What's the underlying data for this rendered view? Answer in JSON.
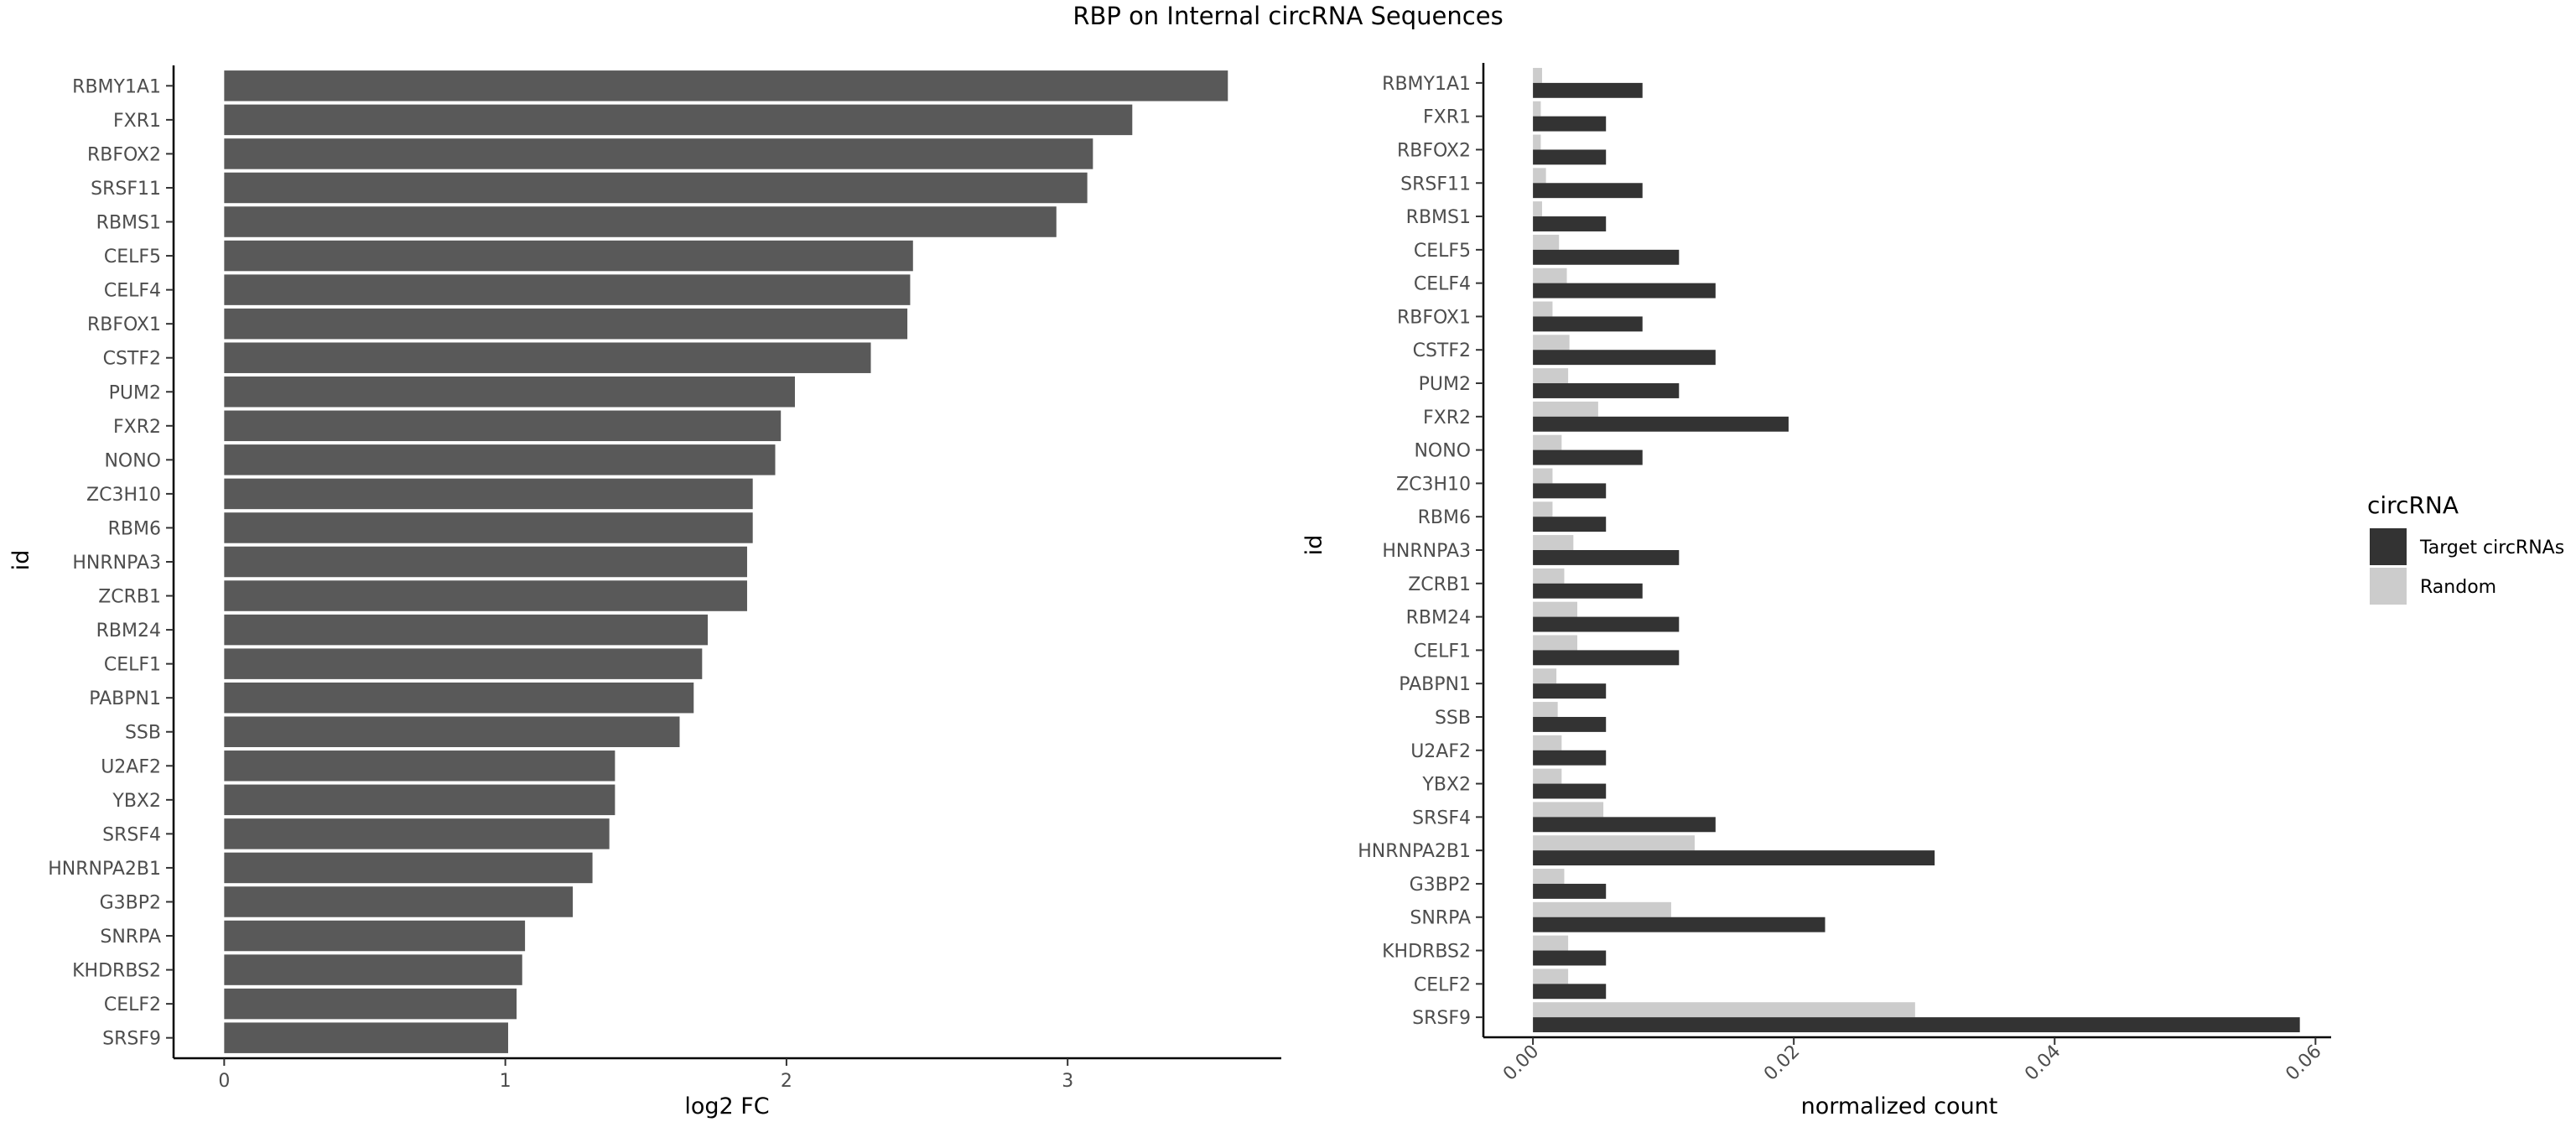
{
  "title": "RBP on Internal circRNA Sequences",
  "colors": {
    "left_bar": "#595959",
    "target": "#333333",
    "random": "#cccccc"
  },
  "chart_data": [
    {
      "type": "bar",
      "orientation": "horizontal",
      "xlabel": "log2 FC",
      "ylabel": "id",
      "xlim": [
        -0.18,
        3.76
      ],
      "xticks": [
        0,
        1,
        2,
        3
      ],
      "grid": false,
      "categories": [
        "RBMY1A1",
        "FXR1",
        "RBFOX2",
        "SRSF11",
        "RBMS1",
        "CELF5",
        "CELF4",
        "RBFOX1",
        "CSTF2",
        "PUM2",
        "FXR2",
        "NONO",
        "ZC3H10",
        "RBM6",
        "HNRNPA3",
        "ZCRB1",
        "RBM24",
        "CELF1",
        "PABPN1",
        "SSB",
        "U2AF2",
        "YBX2",
        "SRSF4",
        "HNRNPA2B1",
        "G3BP2",
        "SNRPA",
        "KHDRBS2",
        "CELF2",
        "SRSF9"
      ],
      "values": [
        3.57,
        3.23,
        3.09,
        3.07,
        2.96,
        2.45,
        2.44,
        2.43,
        2.3,
        2.03,
        1.98,
        1.96,
        1.88,
        1.88,
        1.86,
        1.86,
        1.72,
        1.7,
        1.67,
        1.62,
        1.39,
        1.39,
        1.37,
        1.31,
        1.24,
        1.07,
        1.06,
        1.04,
        1.01
      ]
    },
    {
      "type": "bar",
      "orientation": "horizontal",
      "grouped": true,
      "xlabel": "normalized count",
      "ylabel": "id",
      "xlim": [
        -0.0038,
        0.0612
      ],
      "xticks": [
        "0.00",
        "0.02",
        "0.04",
        "0.06"
      ],
      "grid": false,
      "legend": {
        "title": "circRNA",
        "position": "right"
      },
      "categories": [
        "RBMY1A1",
        "FXR1",
        "RBFOX2",
        "SRSF11",
        "RBMS1",
        "CELF5",
        "CELF4",
        "RBFOX1",
        "CSTF2",
        "PUM2",
        "FXR2",
        "NONO",
        "ZC3H10",
        "RBM6",
        "HNRNPA3",
        "ZCRB1",
        "RBM24",
        "CELF1",
        "PABPN1",
        "SSB",
        "U2AF2",
        "YBX2",
        "SRSF4",
        "HNRNPA2B1",
        "G3BP2",
        "SNRPA",
        "KHDRBS2",
        "CELF2",
        "SRSF9"
      ],
      "series": [
        {
          "name": "Target circRNAs",
          "values": [
            0.0084,
            0.0056,
            0.0056,
            0.0084,
            0.0056,
            0.0112,
            0.014,
            0.0084,
            0.014,
            0.0112,
            0.0196,
            0.0084,
            0.0056,
            0.0056,
            0.0112,
            0.0084,
            0.0112,
            0.0112,
            0.0056,
            0.0056,
            0.0056,
            0.0056,
            0.014,
            0.0308,
            0.0056,
            0.0224,
            0.0056,
            0.0056,
            0.0588
          ]
        },
        {
          "name": "Random",
          "values": [
            0.0007,
            0.0006,
            0.0006,
            0.001,
            0.0007,
            0.002,
            0.0026,
            0.0015,
            0.0028,
            0.0027,
            0.005,
            0.0022,
            0.0015,
            0.0015,
            0.0031,
            0.0024,
            0.0034,
            0.0034,
            0.0018,
            0.0019,
            0.0022,
            0.0022,
            0.0054,
            0.0124,
            0.0024,
            0.0106,
            0.0027,
            0.0027,
            0.0293
          ]
        }
      ]
    }
  ]
}
